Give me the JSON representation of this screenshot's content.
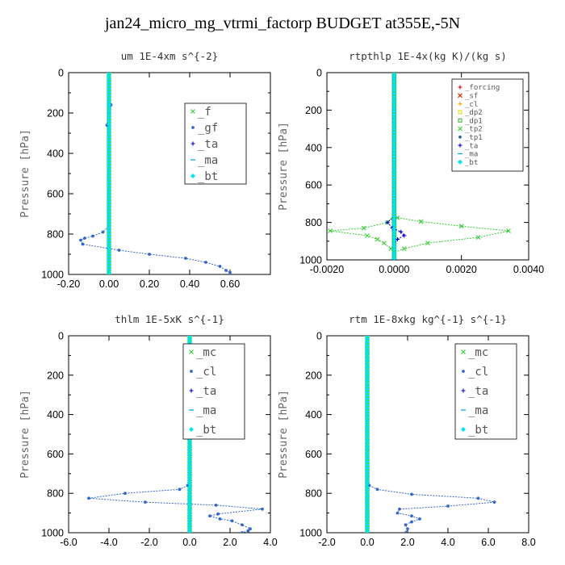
{
  "title": "jan24_micro_mg_vtrmi_factorp  BUDGET at355E,-5N",
  "chart_data": [
    {
      "type": "line",
      "title": "um   1E-4xm s^{-2}",
      "ylabel": "Pressure [hPa]",
      "xlim": [
        -0.2,
        0.8
      ],
      "ylim": [
        0,
        1000
      ],
      "xticks": [
        -0.2,
        0.0,
        0.2,
        0.4,
        0.6
      ],
      "xtick_labels": [
        "-0.20",
        "0.00",
        "0.20",
        "0.40",
        "0.60"
      ],
      "yticks": [
        0,
        200,
        400,
        600,
        800,
        1000
      ],
      "ytick_labels": [
        "0",
        "200",
        "400",
        "600",
        "800",
        "1000"
      ],
      "legend": {
        "position": "top-right",
        "font": "large"
      },
      "series": [
        {
          "name": "_f",
          "color": "#33cc33",
          "marker": "x",
          "points": [
            [
              0,
              0
            ],
            [
              0,
              100
            ],
            [
              0,
              200
            ],
            [
              0,
              300
            ],
            [
              0,
              400
            ],
            [
              0,
              500
            ],
            [
              0,
              600
            ],
            [
              0,
              700
            ],
            [
              0,
              800
            ],
            [
              0,
              900
            ],
            [
              0,
              1000
            ]
          ]
        },
        {
          "name": "_gf",
          "color": "#3366cc",
          "marker": "dot",
          "points": [
            [
              0,
              0
            ],
            [
              0,
              150
            ],
            [
              0.01,
              160
            ],
            [
              0,
              200
            ],
            [
              -0.01,
              260
            ],
            [
              0,
              300
            ],
            [
              0,
              400
            ],
            [
              0,
              500
            ],
            [
              0,
              600
            ],
            [
              0,
              700
            ],
            [
              0,
              760
            ],
            [
              -0.03,
              790
            ],
            [
              -0.08,
              810
            ],
            [
              -0.12,
              820
            ],
            [
              -0.14,
              830
            ],
            [
              -0.13,
              850
            ],
            [
              0.05,
              880
            ],
            [
              0.2,
              900
            ],
            [
              0.38,
              920
            ],
            [
              0.48,
              940
            ],
            [
              0.55,
              960
            ],
            [
              0.58,
              980
            ],
            [
              0.6,
              990
            ],
            [
              0.6,
              1000
            ]
          ]
        },
        {
          "name": "_ta",
          "color": "#0000cc",
          "marker": "plus",
          "points": [
            [
              0,
              0
            ],
            [
              0,
              1000
            ]
          ]
        },
        {
          "name": "_ma",
          "color": "#00aaff",
          "marker": "dash",
          "points": [
            [
              0,
              0
            ],
            [
              0,
              1000
            ]
          ]
        },
        {
          "name": "_bt",
          "color": "#00e5e5",
          "marker": "diamond",
          "points": [
            [
              0,
              0
            ],
            [
              0,
              1000
            ]
          ]
        }
      ]
    },
    {
      "type": "line",
      "title": "rtpthlp   1E-4x(kg K)/(kg s)",
      "ylabel": "Pressure [hPa]",
      "xlim": [
        -0.002,
        0.004
      ],
      "ylim": [
        0,
        1000
      ],
      "xticks": [
        -0.002,
        0.0,
        0.002,
        0.004
      ],
      "xtick_labels": [
        "-0.0020",
        "0.0000",
        "0.0020",
        "0.0040"
      ],
      "yticks": [
        0,
        200,
        400,
        600,
        800,
        1000
      ],
      "ytick_labels": [
        "0",
        "200",
        "400",
        "600",
        "800",
        "1000"
      ],
      "legend": {
        "position": "top-right",
        "font": "small"
      },
      "series": [
        {
          "name": "_forcing",
          "color": "#cc0000",
          "marker": "plus",
          "points": [
            [
              0,
              0
            ],
            [
              0,
              1000
            ]
          ]
        },
        {
          "name": "_sf",
          "color": "#dd2200",
          "marker": "x",
          "points": [
            [
              0,
              0
            ],
            [
              0,
              1000
            ]
          ]
        },
        {
          "name": "_cl",
          "color": "#ffaa00",
          "marker": "plus",
          "points": [
            [
              0,
              0
            ],
            [
              0,
              1000
            ]
          ]
        },
        {
          "name": "_dp2",
          "color": "#dddd00",
          "marker": "square",
          "points": [
            [
              0,
              0
            ],
            [
              0,
              1000
            ]
          ]
        },
        {
          "name": "_dp1",
          "color": "#33aa33",
          "marker": "square",
          "points": [
            [
              0,
              0
            ],
            [
              0,
              1000
            ]
          ]
        },
        {
          "name": "_tp2",
          "color": "#33cc33",
          "marker": "x",
          "points": [
            [
              0,
              760
            ],
            [
              -0.0002,
              800
            ],
            [
              -0.0009,
              830
            ],
            [
              -0.0019,
              845
            ],
            [
              -0.0008,
              870
            ],
            [
              -0.0005,
              890
            ],
            [
              -0.0003,
              910
            ],
            [
              -0.0001,
              940
            ],
            [
              0,
              960
            ],
            [
              0.0003,
              940
            ],
            [
              0.001,
              910
            ],
            [
              0.0025,
              880
            ],
            [
              0.0034,
              845
            ],
            [
              0.002,
              820
            ],
            [
              0.0008,
              795
            ],
            [
              0.0001,
              775
            ],
            [
              0,
              760
            ]
          ]
        },
        {
          "name": "_tp1",
          "color": "#336699",
          "marker": "dot",
          "points": [
            [
              0,
              0
            ],
            [
              0,
              1000
            ]
          ]
        },
        {
          "name": "_ta",
          "color": "#0000cc",
          "marker": "plus",
          "points": [
            [
              0,
              770
            ],
            [
              -0.0002,
              800
            ],
            [
              -5e-05,
              830
            ],
            [
              0.0002,
              850
            ],
            [
              0.0003,
              870
            ],
            [
              0.0001,
              890
            ],
            [
              0,
              910
            ],
            [
              0,
              1000
            ]
          ]
        },
        {
          "name": "_ma",
          "color": "#00aaff",
          "marker": "dash",
          "points": [
            [
              0,
              0
            ],
            [
              0,
              1000
            ]
          ]
        },
        {
          "name": "_bt",
          "color": "#00e5e5",
          "marker": "diamond",
          "points": [
            [
              0,
              0
            ],
            [
              0,
              1000
            ]
          ]
        }
      ]
    },
    {
      "type": "line",
      "title": "thlm   1E-5xK s^{-1}",
      "ylabel": "Pressure [hPa]",
      "xlim": [
        -6.0,
        4.0
      ],
      "ylim": [
        0,
        1000
      ],
      "xticks": [
        -6,
        -4,
        -2,
        0,
        2,
        4
      ],
      "xtick_labels": [
        "-6.0",
        "-4.0",
        "-2.0",
        "0.0",
        "2.0",
        "4.0"
      ],
      "yticks": [
        0,
        200,
        400,
        600,
        800,
        1000
      ],
      "ytick_labels": [
        "0",
        "200",
        "400",
        "600",
        "800",
        "1000"
      ],
      "legend": {
        "position": "top-right",
        "font": "large"
      },
      "series": [
        {
          "name": "_mc",
          "color": "#33cc33",
          "marker": "x",
          "points": [
            [
              0,
              0
            ],
            [
              0,
              100
            ],
            [
              0,
              200
            ],
            [
              0,
              300
            ],
            [
              0,
              400
            ],
            [
              0,
              500
            ],
            [
              0,
              600
            ],
            [
              0,
              700
            ],
            [
              0,
              800
            ],
            [
              0,
              900
            ],
            [
              0,
              1000
            ]
          ]
        },
        {
          "name": "_cl",
          "color": "#3366cc",
          "marker": "dot",
          "points": [
            [
              0,
              0
            ],
            [
              0,
              700
            ],
            [
              -0.1,
              760
            ],
            [
              -0.5,
              780
            ],
            [
              -3.2,
              800
            ],
            [
              -5,
              825
            ],
            [
              -2.2,
              845
            ],
            [
              1.3,
              860
            ],
            [
              3.6,
              880
            ],
            [
              1.4,
              905
            ],
            [
              1,
              915
            ],
            [
              1.5,
              930
            ],
            [
              2.1,
              940
            ],
            [
              2.6,
              960
            ],
            [
              3,
              980
            ],
            [
              2.9,
              990
            ],
            [
              2.6,
              1000
            ]
          ]
        },
        {
          "name": "_ta",
          "color": "#0000cc",
          "marker": "plus",
          "points": [
            [
              0,
              0
            ],
            [
              0,
              1000
            ]
          ]
        },
        {
          "name": "_ma",
          "color": "#00aaff",
          "marker": "dash",
          "points": [
            [
              0,
              0
            ],
            [
              0,
              1000
            ]
          ]
        },
        {
          "name": "_bt",
          "color": "#00e5e5",
          "marker": "diamond",
          "points": [
            [
              0,
              0
            ],
            [
              0,
              1000
            ]
          ]
        }
      ]
    },
    {
      "type": "line",
      "title": "rtm   1E-8xkg kg^{-1} s^{-1}",
      "ylabel": "Pressure [hPa]",
      "xlim": [
        -2.0,
        8.0
      ],
      "ylim": [
        0,
        1000
      ],
      "xticks": [
        -2,
        0,
        2,
        4,
        6,
        8
      ],
      "xtick_labels": [
        "-2.0",
        "0.0",
        "2.0",
        "4.0",
        "6.0",
        "8.0"
      ],
      "yticks": [
        0,
        200,
        400,
        600,
        800,
        1000
      ],
      "ytick_labels": [
        "0",
        "200",
        "400",
        "600",
        "800",
        "1000"
      ],
      "legend": {
        "position": "top-right",
        "font": "large"
      },
      "series": [
        {
          "name": "_mc",
          "color": "#33cc33",
          "marker": "x",
          "points": [
            [
              0,
              0
            ],
            [
              0,
              100
            ],
            [
              0,
              200
            ],
            [
              0,
              300
            ],
            [
              0,
              400
            ],
            [
              0,
              500
            ],
            [
              0,
              600
            ],
            [
              0,
              700
            ],
            [
              0,
              800
            ],
            [
              0,
              900
            ],
            [
              0,
              1000
            ]
          ]
        },
        {
          "name": "_cl",
          "color": "#3366cc",
          "marker": "dot",
          "points": [
            [
              0,
              0
            ],
            [
              0,
              700
            ],
            [
              0.1,
              760
            ],
            [
              0.5,
              780
            ],
            [
              2.2,
              805
            ],
            [
              5.5,
              825
            ],
            [
              6.3,
              845
            ],
            [
              4,
              865
            ],
            [
              1.6,
              880
            ],
            [
              1.5,
              900
            ],
            [
              2.2,
              915
            ],
            [
              2.6,
              930
            ],
            [
              2.2,
              945
            ],
            [
              1.9,
              960
            ],
            [
              2,
              980
            ],
            [
              1.9,
              1000
            ]
          ]
        },
        {
          "name": "_ta",
          "color": "#0000cc",
          "marker": "plus",
          "points": [
            [
              0,
              0
            ],
            [
              0,
              1000
            ]
          ]
        },
        {
          "name": "_ma",
          "color": "#00aaff",
          "marker": "dash",
          "points": [
            [
              0,
              0
            ],
            [
              0,
              1000
            ]
          ]
        },
        {
          "name": "_bt",
          "color": "#00e5e5",
          "marker": "diamond",
          "points": [
            [
              0,
              0
            ],
            [
              0,
              1000
            ]
          ]
        }
      ]
    }
  ]
}
